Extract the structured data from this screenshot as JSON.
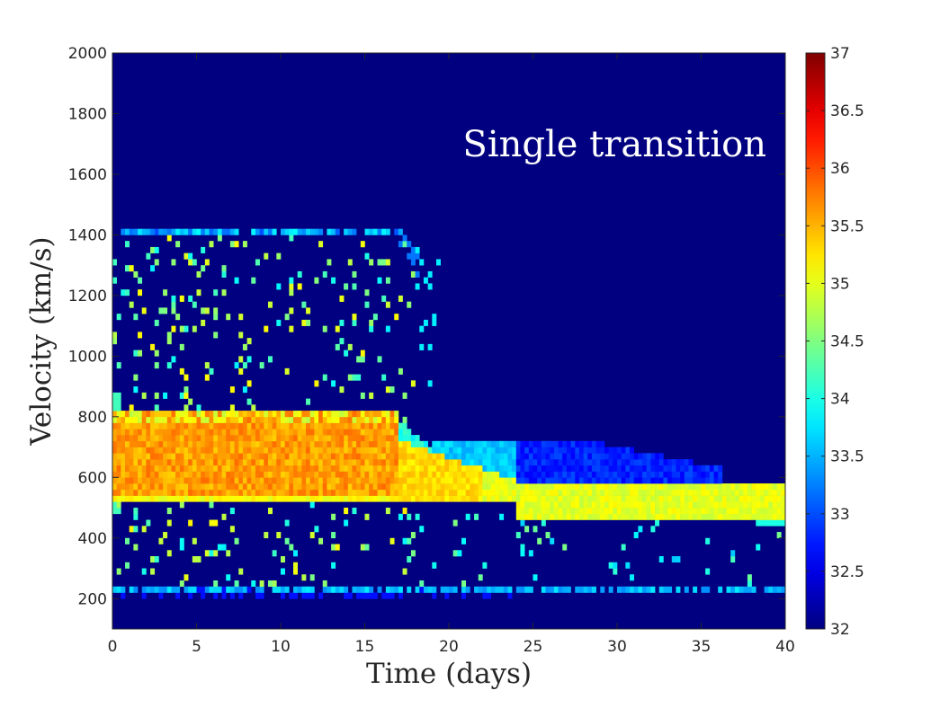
{
  "chart_data": {
    "type": "heatmap",
    "xlabel": "Time (days)",
    "ylabel": "Velocity (km/s)",
    "annotation": "Single  transition",
    "xlim": [
      0,
      40
    ],
    "ylim": [
      100,
      2000
    ],
    "xticks": [
      0,
      5,
      10,
      15,
      20,
      25,
      30,
      35,
      40
    ],
    "yticks": [
      200,
      400,
      600,
      800,
      1000,
      1200,
      1400,
      1600,
      1800,
      2000
    ],
    "colorbar": {
      "range": [
        32,
        37
      ],
      "ticks": [
        32,
        32.5,
        33,
        33.5,
        34,
        34.5,
        35,
        35.5,
        36,
        36.5,
        37
      ],
      "colormap": "jet"
    },
    "background_value": 32,
    "grid": false,
    "features": [
      {
        "label": "core band",
        "t_start": 0,
        "t_end": 17,
        "v_min": 520,
        "v_max": 800,
        "value": 35.6
      },
      {
        "label": "transition core",
        "t_start": 17,
        "t_end": 40,
        "v_center_start": 660,
        "v_center_end": 510,
        "half_width": 50,
        "value": 35.0
      },
      {
        "label": "upper shelf",
        "t_start": 19,
        "t_end": 36,
        "v_min": 580,
        "v_max": 700,
        "value": 33.0
      },
      {
        "label": "low velocity line",
        "t_start": 0,
        "t_end": 40,
        "v": 225,
        "value": 33.5
      },
      {
        "label": "high velocity edge",
        "t_start": 0.5,
        "t_end": 18,
        "v": 1395,
        "value": 33.5
      }
    ]
  }
}
